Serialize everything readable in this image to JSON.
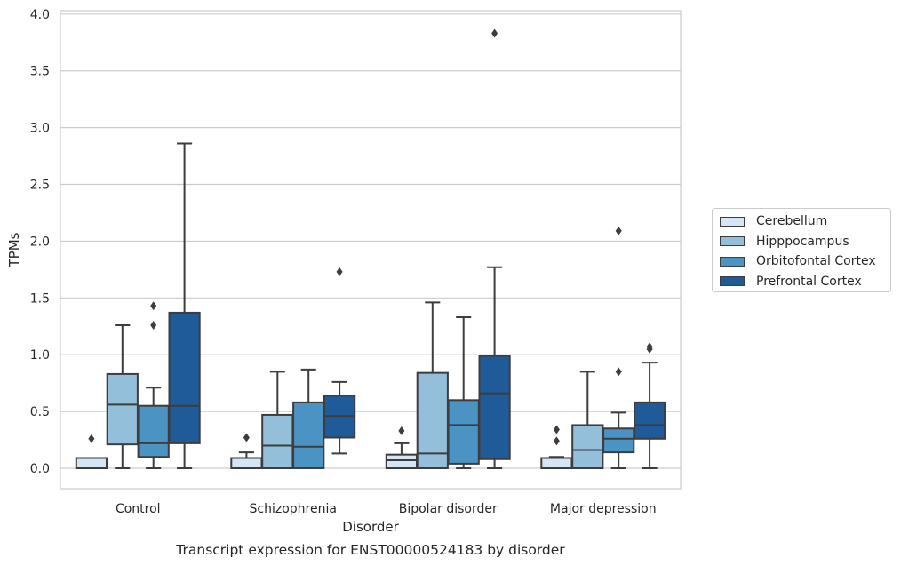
{
  "chart_data": {
    "type": "box",
    "title": "Transcript expression for ENST00000524183 by disorder",
    "xlabel": "Disorder",
    "ylabel": "TPMs",
    "ylim": [
      -0.18,
      4.03
    ],
    "yticks": [
      "0.0",
      "0.5",
      "1.0",
      "1.5",
      "2.0",
      "2.5",
      "3.0",
      "3.5",
      "4.0"
    ],
    "grid": "horizontal",
    "legend_position": "right",
    "categories": [
      "Control",
      "Schizophrenia",
      "Bipolar disorder",
      "Major depression"
    ],
    "series": [
      {
        "name": "Cerebellum",
        "color": "#d5e5f3",
        "boxes": [
          {
            "whisker_low": 0.0,
            "q1": 0.0,
            "median": 0.0,
            "q3": 0.09,
            "whisker_high": 0.09,
            "outliers": [
              0.26
            ]
          },
          {
            "whisker_low": 0.0,
            "q1": 0.0,
            "median": 0.0,
            "q3": 0.09,
            "whisker_high": 0.14,
            "outliers": [
              0.27
            ]
          },
          {
            "whisker_low": 0.0,
            "q1": 0.0,
            "median": 0.07,
            "q3": 0.12,
            "whisker_high": 0.22,
            "outliers": [
              0.33
            ]
          },
          {
            "whisker_low": 0.0,
            "q1": 0.0,
            "median": 0.0,
            "q3": 0.09,
            "whisker_high": 0.1,
            "outliers": [
              0.24,
              0.34
            ]
          }
        ]
      },
      {
        "name": "Hipppocampus",
        "color": "#93bfdb",
        "boxes": [
          {
            "whisker_low": 0.0,
            "q1": 0.21,
            "median": 0.56,
            "q3": 0.83,
            "whisker_high": 1.26,
            "outliers": []
          },
          {
            "whisker_low": 0.0,
            "q1": 0.0,
            "median": 0.2,
            "q3": 0.47,
            "whisker_high": 0.85,
            "outliers": []
          },
          {
            "whisker_low": 0.0,
            "q1": 0.0,
            "median": 0.13,
            "q3": 0.84,
            "whisker_high": 1.46,
            "outliers": []
          },
          {
            "whisker_low": 0.0,
            "q1": 0.0,
            "median": 0.16,
            "q3": 0.38,
            "whisker_high": 0.85,
            "outliers": []
          }
        ]
      },
      {
        "name": "Orbitofontal Cortex",
        "color": "#4b93c3",
        "boxes": [
          {
            "whisker_low": 0.0,
            "q1": 0.1,
            "median": 0.22,
            "q3": 0.55,
            "whisker_high": 0.71,
            "outliers": [
              1.26,
              1.43
            ]
          },
          {
            "whisker_low": 0.0,
            "q1": 0.0,
            "median": 0.19,
            "q3": 0.58,
            "whisker_high": 0.87,
            "outliers": []
          },
          {
            "whisker_low": 0.0,
            "q1": 0.04,
            "median": 0.38,
            "q3": 0.6,
            "whisker_high": 1.33,
            "outliers": []
          },
          {
            "whisker_low": 0.0,
            "q1": 0.14,
            "median": 0.26,
            "q3": 0.35,
            "whisker_high": 0.49,
            "outliers": [
              0.85,
              2.09
            ]
          }
        ]
      },
      {
        "name": "Prefrontal Cortex",
        "color": "#1f5b99",
        "boxes": [
          {
            "whisker_low": 0.0,
            "q1": 0.22,
            "median": 0.55,
            "q3": 1.37,
            "whisker_high": 2.86,
            "outliers": []
          },
          {
            "whisker_low": 0.13,
            "q1": 0.27,
            "median": 0.46,
            "q3": 0.64,
            "whisker_high": 0.76,
            "outliers": [
              1.73
            ]
          },
          {
            "whisker_low": 0.0,
            "q1": 0.08,
            "median": 0.66,
            "q3": 0.99,
            "whisker_high": 1.77,
            "outliers": [
              3.83
            ]
          },
          {
            "whisker_low": 0.0,
            "q1": 0.26,
            "median": 0.38,
            "q3": 0.58,
            "whisker_high": 0.93,
            "outliers": [
              1.05,
              1.07
            ]
          }
        ]
      }
    ]
  }
}
